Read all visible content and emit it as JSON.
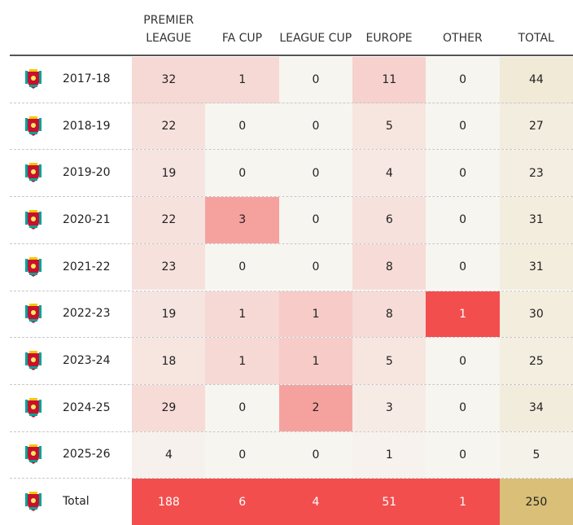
{
  "table": {
    "columns": [
      "PREMIER LEAGUE",
      "FA CUP",
      "LEAGUE CUP",
      "EUROPE",
      "OTHER",
      "TOTAL"
    ],
    "rows": [
      [
        "2017-18",
        32,
        1,
        0,
        11,
        0,
        44
      ],
      [
        "2018-19",
        22,
        0,
        0,
        5,
        0,
        27
      ],
      [
        "2019-20",
        19,
        0,
        0,
        4,
        0,
        23
      ],
      [
        "2020-21",
        22,
        3,
        0,
        6,
        0,
        31
      ],
      [
        "2021-22",
        23,
        0,
        0,
        8,
        0,
        31
      ],
      [
        "2022-23",
        19,
        1,
        1,
        8,
        1,
        30
      ],
      [
        "2023-24",
        18,
        1,
        1,
        5,
        0,
        25
      ],
      [
        "2024-25",
        29,
        0,
        2,
        3,
        0,
        34
      ],
      [
        "2025-26",
        4,
        0,
        0,
        1,
        0,
        5
      ],
      [
        "Total",
        188,
        6,
        4,
        51,
        1,
        250
      ]
    ]
  }
}
